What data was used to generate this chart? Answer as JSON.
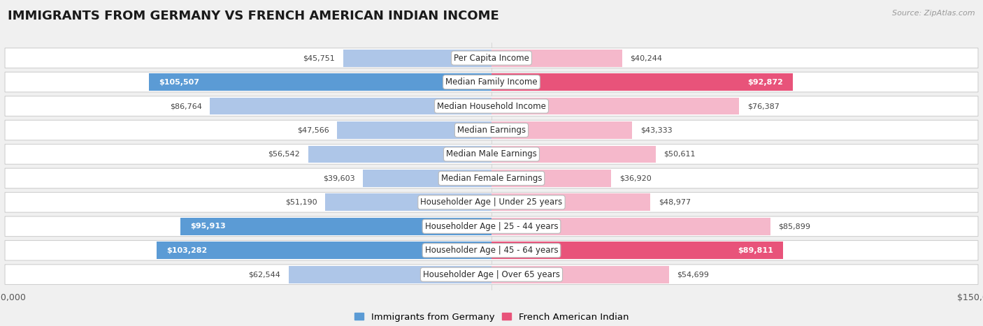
{
  "title": "IMMIGRANTS FROM GERMANY VS FRENCH AMERICAN INDIAN INCOME",
  "source": "Source: ZipAtlas.com",
  "categories": [
    "Per Capita Income",
    "Median Family Income",
    "Median Household Income",
    "Median Earnings",
    "Median Male Earnings",
    "Median Female Earnings",
    "Householder Age | Under 25 years",
    "Householder Age | 25 - 44 years",
    "Householder Age | 45 - 64 years",
    "Householder Age | Over 65 years"
  ],
  "germany_values": [
    45751,
    105507,
    86764,
    47566,
    56542,
    39603,
    51190,
    95913,
    103282,
    62544
  ],
  "french_values": [
    40244,
    92872,
    76387,
    43333,
    50611,
    36920,
    48977,
    85899,
    89811,
    54699
  ],
  "germany_labels": [
    "$45,751",
    "$105,507",
    "$86,764",
    "$47,566",
    "$56,542",
    "$39,603",
    "$51,190",
    "$95,913",
    "$103,282",
    "$62,544"
  ],
  "french_labels": [
    "$40,244",
    "$92,872",
    "$76,387",
    "$43,333",
    "$50,611",
    "$36,920",
    "$48,977",
    "$85,899",
    "$89,811",
    "$54,699"
  ],
  "germany_color_normal": "#aec6e8",
  "germany_color_highlight": "#5b9bd5",
  "french_color_normal": "#f5b8cb",
  "french_color_highlight": "#e8537a",
  "germany_highlight": [
    1,
    7,
    8
  ],
  "french_highlight": [
    1,
    8
  ],
  "max_value": 150000,
  "background_color": "#f0f0f0",
  "bar_background": "#ffffff",
  "row_border_color": "#d0d0d0",
  "legend_germany": "Immigrants from Germany",
  "legend_french": "French American Indian",
  "title_fontsize": 13,
  "label_fontsize": 8.5,
  "value_fontsize": 8.0
}
